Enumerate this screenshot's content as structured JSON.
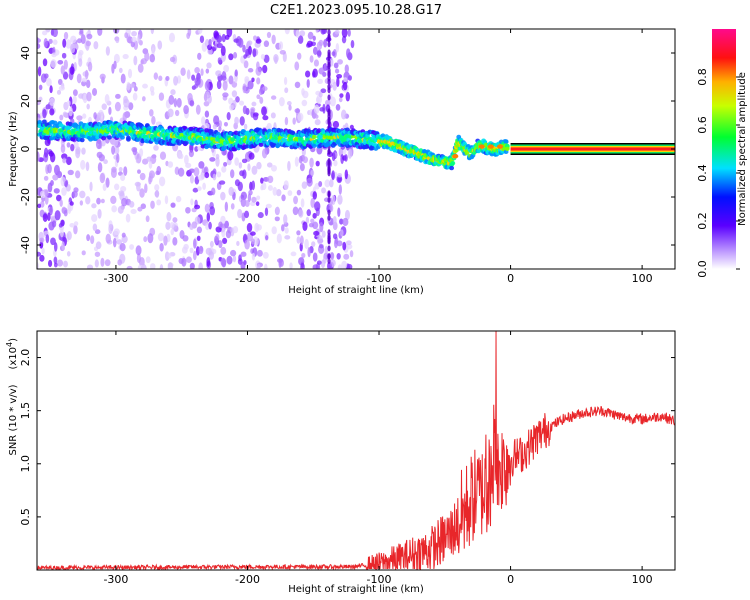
{
  "title": "C2E1.2023.095.10.28.G17",
  "colors": {
    "spectrogram_cmap": [
      "#ffffff",
      "#a020ff",
      "#1a1aff",
      "#00ffff",
      "#00ff00",
      "#ffff00",
      "#ff0000",
      "#ff1493"
    ],
    "snr_line": "#e8262a",
    "frame": "#000000"
  },
  "chart_data": [
    {
      "type": "heatmap",
      "name": "spectrogram",
      "xlabel": "Height of straight line (km)",
      "ylabel": "Frequency (Hz)",
      "xlim": [
        -360,
        125
      ],
      "ylim": [
        -50,
        50
      ],
      "xticks": [
        -300,
        -200,
        -100,
        0,
        100
      ],
      "yticks": [
        -40,
        -20,
        0,
        20,
        40
      ],
      "colorbar": {
        "label": "Normalized spectral amplitude",
        "range": [
          0,
          1
        ],
        "ticks": [
          "0.0",
          "0.2",
          "0.4",
          "0.6",
          "0.8"
        ]
      },
      "ridge": {
        "x": [
          -355,
          -330,
          -300,
          -270,
          -240,
          -215,
          -190,
          -160,
          -130,
          -110,
          -95,
          -80,
          -65,
          -55,
          -45,
          -40,
          -35,
          -30,
          -25,
          -20,
          -12,
          -5,
          0,
          125
        ],
        "y": [
          8,
          7,
          8,
          6,
          5,
          3,
          5,
          4,
          5,
          4,
          3,
          0,
          -3,
          -5,
          -6,
          3,
          0,
          -2,
          1,
          1,
          0,
          1,
          0,
          0
        ]
      },
      "noise_extent_x": [
        -360,
        -120
      ],
      "tone_line": {
        "x": [
          0,
          125
        ],
        "y": 0,
        "color": "#ff2020"
      }
    },
    {
      "type": "line",
      "name": "snr",
      "xlabel": "Height of straight line (km)",
      "ylabel": "SNR (10 * v/v)",
      "multiplier_label": "(x10",
      "multiplier_exp": "4",
      "xlim": [
        -360,
        125
      ],
      "ylim": [
        0,
        2.25
      ],
      "xticks": [
        -300,
        -200,
        -100,
        0,
        100
      ],
      "yticks": [
        0.5,
        1.0,
        1.5,
        2.0
      ],
      "ytick_labels": [
        "0.5",
        "1.0",
        "1.5",
        "2.0"
      ],
      "trend": {
        "x": [
          -360,
          -200,
          -120,
          -100,
          -80,
          -60,
          -45,
          -35,
          -28,
          -20,
          -15,
          -10,
          -5,
          0,
          10,
          20,
          30,
          40,
          55,
          70,
          85,
          100,
          115,
          125
        ],
        "y": [
          0.02,
          0.03,
          0.03,
          0.06,
          0.12,
          0.2,
          0.35,
          0.55,
          0.7,
          0.75,
          0.85,
          0.95,
          1.0,
          1.05,
          1.1,
          1.25,
          1.35,
          1.42,
          1.48,
          1.5,
          1.44,
          1.42,
          1.45,
          1.4
        ]
      },
      "spike": {
        "x": -11,
        "y": 2.25
      }
    }
  ]
}
